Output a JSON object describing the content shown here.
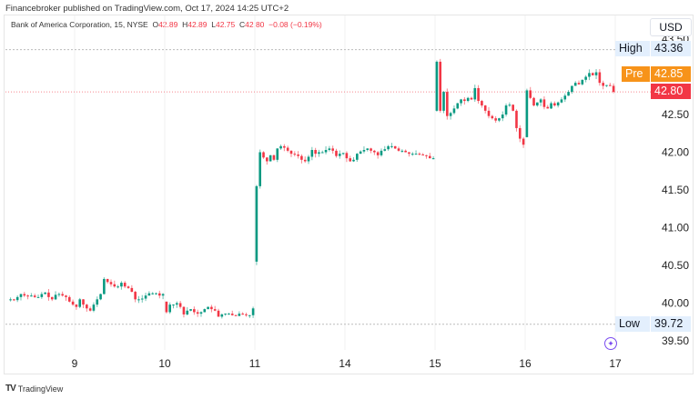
{
  "publisher_line": "Financebroker published on TradingView.com, Oct 17, 2024 14:25 UTC+2",
  "legend": {
    "symbol": "Bank of America Corporation, 15, NYSE",
    "o_label": "O",
    "o": "42.89",
    "h_label": "H",
    "h": "42.89",
    "l_label": "L",
    "l": "42.75",
    "c_label": "C",
    "c": "42.80",
    "change": "−0.08 (−0.19%)"
  },
  "currency": "USD",
  "badges": {
    "high_label": "High",
    "high": "43.36",
    "pre_label": "Pre",
    "pre": "42.85",
    "last": "42.80",
    "low_label": "Low",
    "low": "39.72"
  },
  "colors": {
    "up": "#089981",
    "down": "#f23645",
    "pre": "#f7931a",
    "highlow_bg": "#e3effd",
    "compare": "#7b4cf0"
  },
  "brand": "TradingView",
  "chart_data": {
    "type": "candlestick",
    "interval": "15",
    "y_ticks": [
      "43.50",
      "42.50",
      "42.00",
      "41.50",
      "41.00",
      "40.50",
      "40.00",
      "39.50"
    ],
    "x_ticks": [
      "9",
      "10",
      "11",
      "14",
      "15",
      "16",
      "17"
    ],
    "sessions": [
      {
        "day": "8",
        "closes": [
          40.05,
          40.04,
          40.08,
          40.12,
          40.1,
          40.09,
          40.1,
          40.08,
          40.08,
          40.12,
          40.14,
          40.08,
          40.05,
          40.11,
          40.12,
          40.1,
          40.08,
          40.02,
          39.98
        ]
      },
      {
        "day": "9",
        "closes": [
          39.95,
          40.05,
          39.98,
          39.93,
          39.9,
          39.98,
          40.05,
          40.12,
          40.32,
          40.28,
          40.25,
          40.22,
          40.22,
          40.27,
          40.22,
          40.2,
          40.15,
          40.05,
          40.05,
          40.06,
          40.1,
          40.13,
          40.13,
          40.13,
          40.1,
          40.12
        ]
      },
      {
        "day": "10",
        "open": 40.02,
        "closes": [
          39.88,
          39.98,
          39.98,
          40.0,
          39.95,
          39.85,
          39.9,
          39.92,
          39.88,
          39.86,
          39.88,
          39.92,
          39.95,
          39.92,
          39.9,
          39.82,
          39.85,
          39.86,
          39.86,
          39.84,
          39.83,
          39.86,
          39.85,
          39.84,
          39.84,
          39.93
        ]
      },
      {
        "day": "11",
        "open": 40.55,
        "closes": [
          41.55,
          42.0,
          41.93,
          41.88,
          41.96,
          41.9,
          42.05,
          42.08,
          42.06,
          42.02,
          41.98,
          41.97,
          41.95,
          41.9,
          41.88,
          41.94,
          42.03,
          41.98,
          42.0,
          42.0,
          42.03,
          42.05,
          42.02,
          41.95,
          41.98,
          41.99
        ]
      },
      {
        "day": "14",
        "closes": [
          41.92,
          41.88,
          41.9,
          41.98,
          42.01,
          42.03,
          42.05,
          42.02,
          42.0,
          41.96,
          42.02,
          42.04,
          42.08,
          42.08,
          42.05,
          42.02,
          42.02,
          42.0,
          41.98,
          41.98,
          41.98,
          41.97,
          41.96,
          41.95,
          41.92,
          41.92
        ]
      },
      {
        "day": "15",
        "open": 42.55,
        "closes": [
          43.2,
          42.55,
          42.8,
          42.48,
          42.52,
          42.58,
          42.65,
          42.7,
          42.68,
          42.72,
          42.7,
          42.85,
          42.68,
          42.62,
          42.55,
          42.48,
          42.45,
          42.42,
          42.45,
          42.5,
          42.62,
          42.63,
          42.55,
          42.32,
          42.18,
          42.1
        ]
      },
      {
        "day": "16",
        "open": 42.2,
        "closes": [
          42.82,
          42.72,
          42.62,
          42.66,
          42.7,
          42.6,
          42.58,
          42.65,
          42.62,
          42.66,
          42.7,
          42.75,
          42.8,
          42.88,
          42.92,
          42.9,
          42.96,
          43.0,
          43.05,
          43.02,
          43.06,
          42.92,
          42.88,
          42.89,
          42.88,
          42.8
        ]
      }
    ]
  }
}
